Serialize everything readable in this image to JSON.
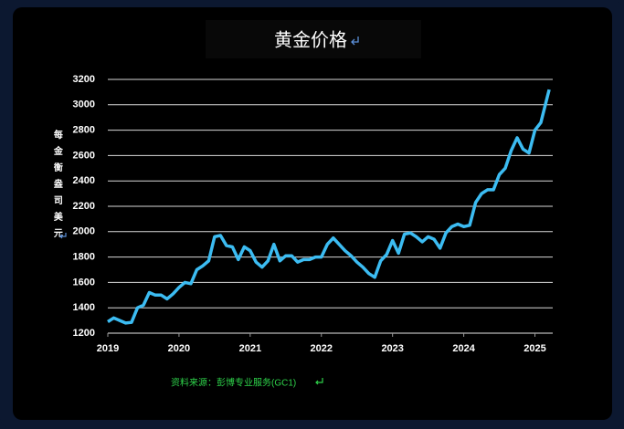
{
  "chart_data": {
    "type": "line",
    "title": "黄金价格",
    "y_label": "每金衡盎司美元",
    "source": "资料来源：彭博专业服务(GC1)",
    "x": [
      2019,
      2019.083,
      2019.167,
      2019.25,
      2019.333,
      2019.417,
      2019.5,
      2019.583,
      2019.667,
      2019.75,
      2019.833,
      2019.917,
      2020,
      2020.083,
      2020.167,
      2020.25,
      2020.333,
      2020.417,
      2020.5,
      2020.583,
      2020.667,
      2020.75,
      2020.833,
      2020.917,
      2021,
      2021.083,
      2021.167,
      2021.25,
      2021.333,
      2021.417,
      2021.5,
      2021.583,
      2021.667,
      2021.75,
      2021.833,
      2021.917,
      2022,
      2022.083,
      2022.167,
      2022.25,
      2022.333,
      2022.417,
      2022.5,
      2022.583,
      2022.667,
      2022.75,
      2022.833,
      2022.917,
      2023,
      2023.083,
      2023.167,
      2023.25,
      2023.333,
      2023.417,
      2023.5,
      2023.583,
      2023.667,
      2023.75,
      2023.833,
      2023.917,
      2024,
      2024.083,
      2024.167,
      2024.25,
      2024.333,
      2024.417,
      2024.5,
      2024.583,
      2024.667,
      2024.75,
      2024.833,
      2024.917,
      2025,
      2025.083,
      2025.2
    ],
    "values": [
      1290,
      1320,
      1300,
      1280,
      1285,
      1400,
      1420,
      1520,
      1500,
      1500,
      1470,
      1510,
      1560,
      1600,
      1590,
      1700,
      1730,
      1770,
      1960,
      1970,
      1890,
      1880,
      1780,
      1880,
      1850,
      1760,
      1720,
      1770,
      1900,
      1770,
      1810,
      1810,
      1760,
      1780,
      1780,
      1800,
      1800,
      1900,
      1950,
      1900,
      1850,
      1810,
      1760,
      1720,
      1670,
      1640,
      1770,
      1820,
      1930,
      1830,
      1980,
      1990,
      1960,
      1920,
      1960,
      1940,
      1870,
      1990,
      2040,
      2060,
      2040,
      2050,
      2230,
      2300,
      2330,
      2330,
      2450,
      2500,
      2640,
      2740,
      2650,
      2620,
      2800,
      2860,
      3120
    ],
    "color": "#3cbcf2",
    "xlim": [
      2019,
      2025.25
    ],
    "xticks": [
      2019,
      2020,
      2021,
      2022,
      2023,
      2024,
      2025
    ],
    "ylim": [
      1200,
      3200
    ],
    "yticks": [
      1200,
      1400,
      1600,
      1800,
      2000,
      2200,
      2400,
      2600,
      2800,
      3000,
      3200
    ],
    "grid": true
  }
}
